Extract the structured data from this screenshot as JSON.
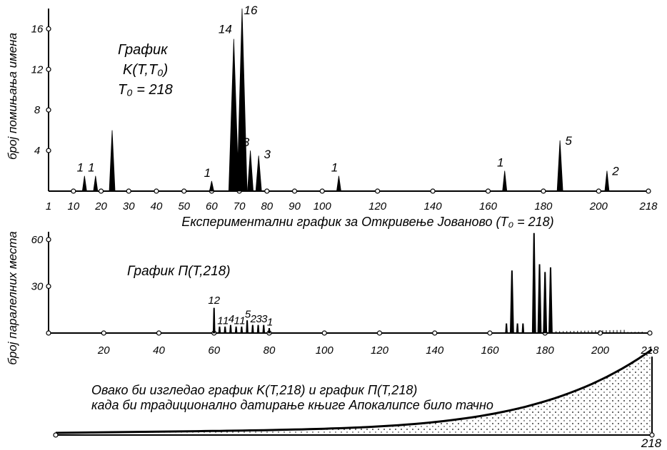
{
  "chart_data": [
    {
      "type": "bar",
      "ylabel": "број помињања имена",
      "xlabel": "Експериментални график за Откривење Јованово (T₀ = 218)",
      "annotation": [
        "График",
        "K(T,T₀)",
        "T₀ = 218"
      ],
      "x_ticks": [
        "1",
        "10",
        "20",
        "30",
        "40",
        "50",
        "60",
        "70",
        "80",
        "90",
        "100",
        "120",
        "140",
        "160",
        "180",
        "200",
        "218"
      ],
      "y_ticks": [
        "4",
        "8",
        "12",
        "16"
      ],
      "xlim": [
        1,
        218
      ],
      "ylim": [
        0,
        18
      ],
      "peaks": [
        {
          "x": 14,
          "y": 1.5,
          "label": "1"
        },
        {
          "x": 18,
          "y": 1.5,
          "label": "1"
        },
        {
          "x": 24,
          "y": 6,
          "label": ""
        },
        {
          "x": 60,
          "y": 1,
          "label": "1"
        },
        {
          "x": 68,
          "y": 15,
          "label": "14"
        },
        {
          "x": 71,
          "y": 18,
          "label": "16"
        },
        {
          "x": 74,
          "y": 4,
          "label": "3"
        },
        {
          "x": 77,
          "y": 3.5,
          "label": "3"
        },
        {
          "x": 106,
          "y": 1.5,
          "label": "1"
        },
        {
          "x": 166,
          "y": 2,
          "label": "1"
        },
        {
          "x": 186,
          "y": 5,
          "label": "5"
        },
        {
          "x": 203,
          "y": 2,
          "label": "2"
        }
      ]
    },
    {
      "type": "bar",
      "ylabel": "број паралелних места",
      "annotation": "График П(T,218)",
      "x_ticks": [
        "20",
        "40",
        "60",
        "80",
        "100",
        "120",
        "140",
        "160",
        "180",
        "200",
        "218"
      ],
      "y_ticks": [
        "30",
        "60"
      ],
      "xlim": [
        0,
        218
      ],
      "ylim": [
        0,
        65
      ],
      "peaks": [
        {
          "x": 60,
          "y": 16,
          "label": "12"
        },
        {
          "x": 62,
          "y": 4,
          "label": "1"
        },
        {
          "x": 64,
          "y": 4,
          "label": "1"
        },
        {
          "x": 66,
          "y": 5,
          "label": "4"
        },
        {
          "x": 68,
          "y": 4,
          "label": "1"
        },
        {
          "x": 70,
          "y": 4,
          "label": "1"
        },
        {
          "x": 72,
          "y": 8,
          "label": "5"
        },
        {
          "x": 74,
          "y": 5,
          "label": "2"
        },
        {
          "x": 76,
          "y": 5,
          "label": "3"
        },
        {
          "x": 78,
          "y": 5,
          "label": "3"
        },
        {
          "x": 80,
          "y": 3,
          "label": "1"
        },
        {
          "x": 166,
          "y": 6,
          "label": ""
        },
        {
          "x": 168,
          "y": 40,
          "label": ""
        },
        {
          "x": 170,
          "y": 6,
          "label": ""
        },
        {
          "x": 172,
          "y": 6,
          "label": ""
        },
        {
          "x": 176,
          "y": 64,
          "label": ""
        },
        {
          "x": 178,
          "y": 44,
          "label": ""
        },
        {
          "x": 180,
          "y": 39,
          "label": ""
        },
        {
          "x": 182,
          "y": 42,
          "label": ""
        }
      ]
    },
    {
      "type": "area",
      "annotation": [
        "Овако би изгледао график K(T,218) и график П(T,218)",
        "када би традиционално датирање књиге Апокалипсе било тачно"
      ],
      "x_end_label": "218"
    }
  ]
}
